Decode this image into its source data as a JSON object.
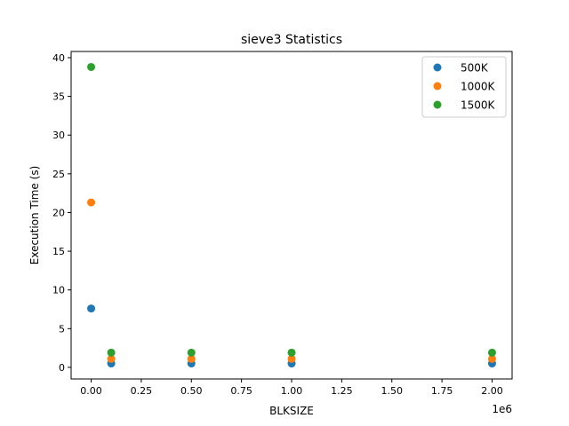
{
  "chart_data": {
    "type": "scatter",
    "title": "sieve3 Statistics",
    "xlabel": "BLKSIZE",
    "ylabel": "Execution Time (s)",
    "x_offset_label": "1e6",
    "xlim": [
      -0.1,
      2.1
    ],
    "ylim": [
      -1.5,
      40.8
    ],
    "x_ticks": [
      0.0,
      0.25,
      0.5,
      0.75,
      1.0,
      1.25,
      1.5,
      1.75,
      2.0
    ],
    "x_tick_labels": [
      "0.00",
      "0.25",
      "0.50",
      "0.75",
      "1.00",
      "1.25",
      "1.50",
      "1.75",
      "2.00"
    ],
    "y_ticks": [
      0,
      5,
      10,
      15,
      20,
      25,
      30,
      35,
      40
    ],
    "y_tick_labels": [
      "0",
      "5",
      "10",
      "15",
      "20",
      "25",
      "30",
      "35",
      "40"
    ],
    "grid": false,
    "legend_position": "top-right",
    "x": [
      0.0,
      0.1,
      0.5,
      1.0,
      2.0
    ],
    "series": [
      {
        "name": "500K",
        "color": "#1f77b4",
        "values": [
          7.6,
          0.5,
          0.5,
          0.5,
          0.5
        ]
      },
      {
        "name": "1000K",
        "color": "#ff7f0e",
        "values": [
          21.3,
          1.1,
          1.1,
          1.1,
          1.1
        ]
      },
      {
        "name": "1500K",
        "color": "#2ca02c",
        "values": [
          38.8,
          1.9,
          1.9,
          1.9,
          1.9
        ]
      }
    ]
  }
}
